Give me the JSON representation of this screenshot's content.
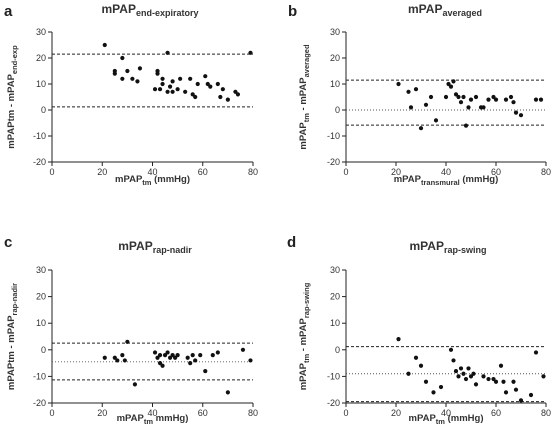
{
  "chart_data": [
    {
      "type": "scatter",
      "letter": "a",
      "title": {
        "main": "mPAP",
        "sub": "end-expiratory"
      },
      "xlabel": {
        "main": "mPAP",
        "sub": "tm",
        "suffix": " (mmHg)"
      },
      "ylabel": {
        "main": "mPAPtm - mPAP",
        "sub": "end-exp",
        "suffix": ""
      },
      "xlim": [
        0,
        80
      ],
      "ylim": [
        -20,
        30
      ],
      "xticks": [
        0,
        20,
        40,
        60,
        80
      ],
      "yticks": [
        -20,
        -10,
        0,
        10,
        20,
        30
      ],
      "limits_of_agreement": [
        21.5,
        1.2
      ],
      "mean_line": null,
      "points": [
        [
          21,
          25
        ],
        [
          25,
          15
        ],
        [
          25,
          14
        ],
        [
          28,
          20
        ],
        [
          28,
          12
        ],
        [
          30,
          15
        ],
        [
          32,
          12
        ],
        [
          34,
          11
        ],
        [
          35,
          16
        ],
        [
          41,
          8
        ],
        [
          42,
          15
        ],
        [
          42,
          14
        ],
        [
          43,
          8
        ],
        [
          44,
          10
        ],
        [
          44,
          12
        ],
        [
          46,
          22
        ],
        [
          46,
          7
        ],
        [
          47,
          9
        ],
        [
          48,
          11
        ],
        [
          48,
          7
        ],
        [
          50,
          8
        ],
        [
          51,
          12
        ],
        [
          53,
          7
        ],
        [
          55,
          12
        ],
        [
          56,
          6
        ],
        [
          57,
          5
        ],
        [
          58,
          10
        ],
        [
          61,
          13
        ],
        [
          62,
          10
        ],
        [
          63,
          9
        ],
        [
          66,
          10
        ],
        [
          67,
          5
        ],
        [
          68,
          8
        ],
        [
          70,
          4
        ],
        [
          73,
          7
        ],
        [
          74,
          6
        ],
        [
          79,
          22
        ]
      ]
    },
    {
      "type": "scatter",
      "letter": "b",
      "title": {
        "main": "mPAP",
        "sub": "averaged"
      },
      "xlabel": {
        "main": "mPAP",
        "sub": "transmural",
        "suffix": " (mmHg)"
      },
      "ylabel": {
        "main": "mPAP",
        "sub": "tm",
        "suffix": " - mPAP",
        "sub2": "averaged"
      },
      "xlim": [
        0,
        80
      ],
      "ylim": [
        -20,
        30
      ],
      "xticks": [
        0,
        20,
        40,
        60,
        80
      ],
      "yticks": [
        -20,
        -10,
        0,
        10,
        20,
        30
      ],
      "limits_of_agreement": [
        11.5,
        -5.8
      ],
      "mean_line": 0,
      "points": [
        [
          21,
          10
        ],
        [
          25,
          7
        ],
        [
          26,
          1
        ],
        [
          28,
          8
        ],
        [
          30,
          -7
        ],
        [
          32,
          2
        ],
        [
          34,
          5
        ],
        [
          36,
          -4
        ],
        [
          40,
          5
        ],
        [
          41,
          10
        ],
        [
          42,
          9
        ],
        [
          43,
          11
        ],
        [
          44,
          6
        ],
        [
          45,
          5
        ],
        [
          46,
          3
        ],
        [
          47,
          5
        ],
        [
          48,
          -6
        ],
        [
          49,
          1
        ],
        [
          50,
          4
        ],
        [
          52,
          5
        ],
        [
          54,
          1
        ],
        [
          55,
          1
        ],
        [
          57,
          4
        ],
        [
          59,
          5
        ],
        [
          60,
          4
        ],
        [
          64,
          4
        ],
        [
          66,
          5
        ],
        [
          67,
          3
        ],
        [
          68,
          -1
        ],
        [
          70,
          -2
        ],
        [
          76,
          4
        ],
        [
          78,
          4
        ]
      ]
    },
    {
      "type": "scatter",
      "letter": "c",
      "title": {
        "main": "mPAP",
        "sub": "rap-nadir"
      },
      "xlabel": {
        "main": "mPAP",
        "sub": "tm",
        "suffix": " mmHg)"
      },
      "ylabel": {
        "main": "mPAPtm - mPAP",
        "sub": "rap-nadir",
        "suffix": ""
      },
      "xlim": [
        0,
        80
      ],
      "ylim": [
        -20,
        30
      ],
      "xticks": [
        0,
        20,
        40,
        60,
        80
      ],
      "yticks": [
        -20,
        -10,
        0,
        10,
        20,
        30
      ],
      "limits_of_agreement": [
        2.5,
        -11.3
      ],
      "mean_line": -4.5,
      "points": [
        [
          21,
          -3
        ],
        [
          25,
          -3
        ],
        [
          26,
          -4
        ],
        [
          28,
          -2
        ],
        [
          29,
          -4
        ],
        [
          30,
          3
        ],
        [
          33,
          -13
        ],
        [
          41,
          -1
        ],
        [
          42,
          -3
        ],
        [
          43,
          -2
        ],
        [
          43,
          -5
        ],
        [
          44,
          -6
        ],
        [
          45,
          -2
        ],
        [
          46,
          -1
        ],
        [
          47,
          -3
        ],
        [
          48,
          -2
        ],
        [
          49,
          -3
        ],
        [
          50,
          -2
        ],
        [
          54,
          -3
        ],
        [
          55,
          -5
        ],
        [
          56,
          -2
        ],
        [
          57,
          -4
        ],
        [
          59,
          -2
        ],
        [
          61,
          -8
        ],
        [
          64,
          -2
        ],
        [
          66,
          -1
        ],
        [
          70,
          -16
        ],
        [
          76,
          0
        ],
        [
          79,
          -4
        ]
      ]
    },
    {
      "type": "scatter",
      "letter": "d",
      "title": {
        "main": "mPAP",
        "sub": "rap-swing"
      },
      "xlabel": {
        "main": "mPAP",
        "sub": "tm",
        "suffix": " (mmHg)"
      },
      "ylabel": {
        "main": "mPAP",
        "sub": "tm",
        "suffix": " - mPAP",
        "sub2": "rap-swing"
      },
      "xlim": [
        0,
        80
      ],
      "ylim": [
        -20,
        30
      ],
      "xticks": [
        0,
        20,
        40,
        60,
        80
      ],
      "yticks": [
        -20,
        -10,
        0,
        10,
        20,
        30
      ],
      "limits_of_agreement": [
        1.2,
        -19.5
      ],
      "mean_line": -9,
      "points": [
        [
          21,
          4
        ],
        [
          25,
          -9
        ],
        [
          28,
          -3
        ],
        [
          30,
          -6
        ],
        [
          32,
          -12
        ],
        [
          35,
          -16
        ],
        [
          38,
          -14
        ],
        [
          42,
          0
        ],
        [
          43,
          -4
        ],
        [
          44,
          -8
        ],
        [
          45,
          -10
        ],
        [
          46,
          -7
        ],
        [
          47,
          -9
        ],
        [
          48,
          -11
        ],
        [
          49,
          -7
        ],
        [
          50,
          -10
        ],
        [
          51,
          -9
        ],
        [
          52,
          -13
        ],
        [
          55,
          -10
        ],
        [
          57,
          -11
        ],
        [
          59,
          -11
        ],
        [
          60,
          -12
        ],
        [
          62,
          -6
        ],
        [
          63,
          -12
        ],
        [
          64,
          -16
        ],
        [
          67,
          -12
        ],
        [
          68,
          -15
        ],
        [
          70,
          -19
        ],
        [
          74,
          -17
        ],
        [
          76,
          -1
        ],
        [
          79,
          -10
        ]
      ]
    }
  ]
}
